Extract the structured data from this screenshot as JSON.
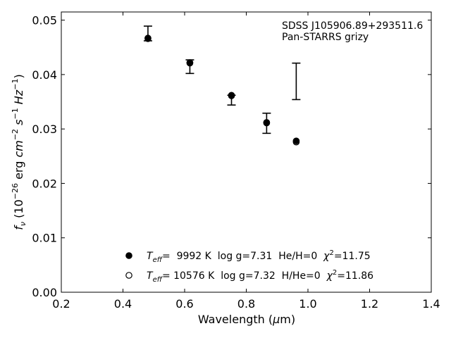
{
  "chart_data": {
    "type": "scatter",
    "xlabel": "Wavelength (μm)",
    "ylabel": "f_ν (10^-26 erg cm^-2 s^-1 Hz^-1)",
    "xlim": [
      0.2,
      1.4
    ],
    "ylim": [
      0.0,
      0.0515
    ],
    "xticks": [
      "0.2",
      "0.4",
      "0.6",
      "0.8",
      "1.0",
      "1.2",
      "1.4"
    ],
    "yticks": [
      "0.00",
      "0.01",
      "0.02",
      "0.03",
      "0.04",
      "0.05"
    ],
    "grid": false,
    "annotation": {
      "line1": "SDSS J105906.89+293511.6",
      "line2": "Pan-STARRS grizy"
    },
    "observed": {
      "x": [
        0.481,
        0.617,
        0.752,
        0.866,
        0.962
      ],
      "y": [
        0.0475,
        0.0415,
        0.0352,
        0.0311,
        0.0388
      ],
      "yerr_low": [
        0.0462,
        0.0402,
        0.0344,
        0.0292,
        0.0354
      ],
      "yerr_high": [
        0.0489,
        0.0427,
        0.0362,
        0.0329,
        0.0421
      ]
    },
    "series": [
      {
        "marker": "filled",
        "label": {
          "T": "T",
          "T_sub": "eff",
          "temp": "=  9992 K",
          "logg": "log g=7.31",
          "comp": "He/H=0",
          "chi": "χ",
          "chi_sup": "2",
          "chi_val": "=11.75"
        },
        "x": [
          0.481,
          0.617,
          0.752,
          0.866,
          0.962
        ],
        "y": [
          0.0467,
          0.0422,
          0.0362,
          0.0312,
          0.0278
        ]
      },
      {
        "marker": "open",
        "label": {
          "T": "T",
          "T_sub": "eff",
          "temp": "= 10576 K",
          "logg": "log g=7.32",
          "comp": "H/He=0",
          "chi": "χ",
          "chi_sup": "2",
          "chi_val": "=11.86"
        },
        "x": [
          0.481,
          0.617,
          0.752,
          0.866,
          0.962
        ],
        "y": [
          0.0466,
          0.0421,
          0.0361,
          0.0311,
          0.0276
        ]
      }
    ],
    "legend_position": "lower-center"
  }
}
